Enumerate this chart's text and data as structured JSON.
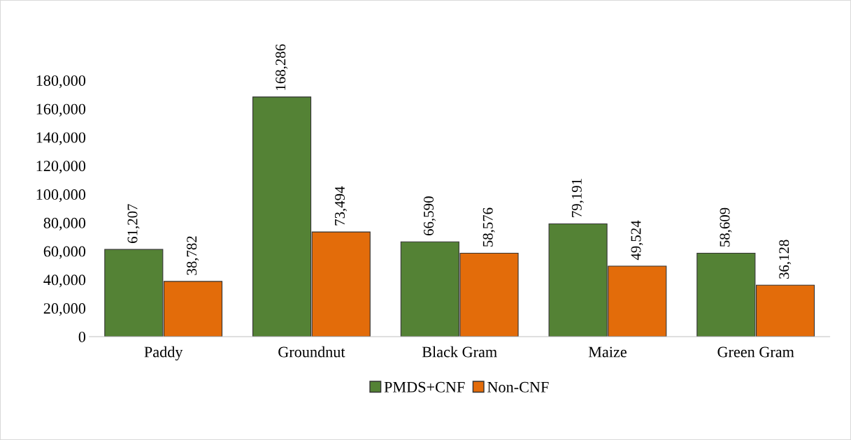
{
  "chart_data": {
    "type": "bar",
    "categories": [
      "Paddy",
      "Groundnut",
      "Black Gram",
      "Maize",
      "Green Gram"
    ],
    "series": [
      {
        "name": "PMDS+CNF",
        "color": "#548235",
        "values": [
          61207,
          168286,
          66590,
          79191,
          58609
        ],
        "value_labels": [
          "61,207",
          "168,286",
          "66,590",
          "79,191",
          "58,609"
        ]
      },
      {
        "name": "Non-CNF",
        "color": "#e36c0a",
        "values": [
          38782,
          73494,
          58576,
          49524,
          36128
        ],
        "value_labels": [
          "38,782",
          "73,494",
          "58,576",
          "49,524",
          "36,128"
        ]
      }
    ],
    "ylim": [
      0,
      180000
    ],
    "yticks": [
      0,
      {
        "value": 20000,
        "label": "20,000"
      },
      {
        "value": 40000,
        "label": "40,000"
      },
      {
        "value": 60000,
        "label": "60,000"
      },
      {
        "value": 80000,
        "label": "80,000"
      },
      {
        "value": 100000,
        "label": "100,000"
      },
      {
        "value": 120000,
        "label": "120,000"
      },
      {
        "value": 140000,
        "label": "140,000"
      },
      {
        "value": 160000,
        "label": "160,000"
      },
      {
        "value": 180000,
        "label": "180,000"
      }
    ],
    "grid": false,
    "legend": "bottom"
  }
}
